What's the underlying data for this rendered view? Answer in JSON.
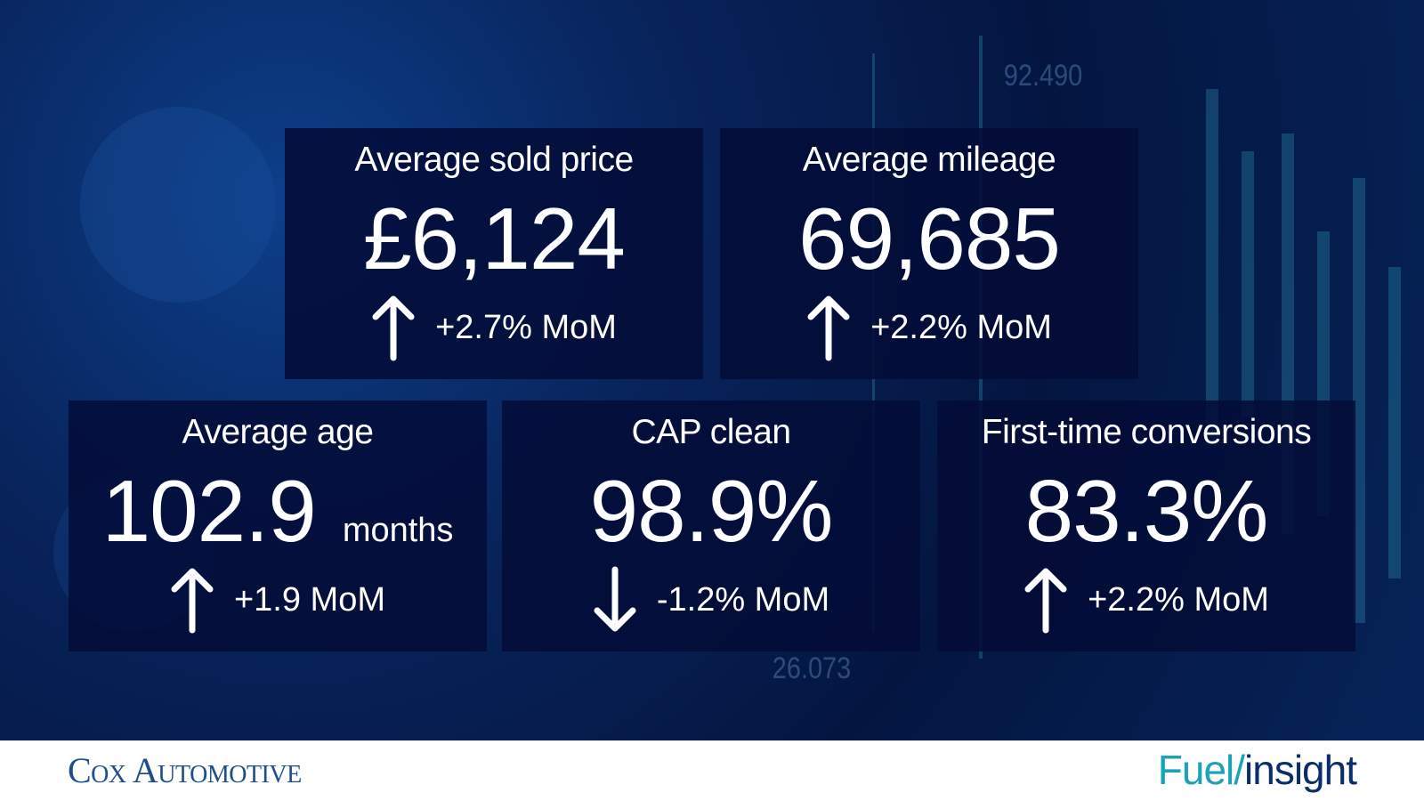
{
  "cards": [
    {
      "title": "Average sold price",
      "value": "£6,124",
      "change": "+2.7% MoM",
      "trend": "up"
    },
    {
      "title": "Average mileage",
      "value": "69,685",
      "change": "+2.2% MoM",
      "trend": "up"
    },
    {
      "title": "Average age",
      "value": "102.9",
      "unit": "months",
      "change": "+1.9 MoM",
      "trend": "up"
    },
    {
      "title": "CAP clean",
      "value": "98.9%",
      "change": "-1.2% MoM",
      "trend": "down"
    },
    {
      "title": "First-time conversions",
      "value": "83.3%",
      "change": "+2.2% MoM",
      "trend": "up"
    }
  ],
  "background_labels": [
    "92.490",
    "26.073"
  ],
  "footer": {
    "brand": "Cox Automotive",
    "product_prefix": "Fuel/",
    "product_suffix": "insight"
  }
}
